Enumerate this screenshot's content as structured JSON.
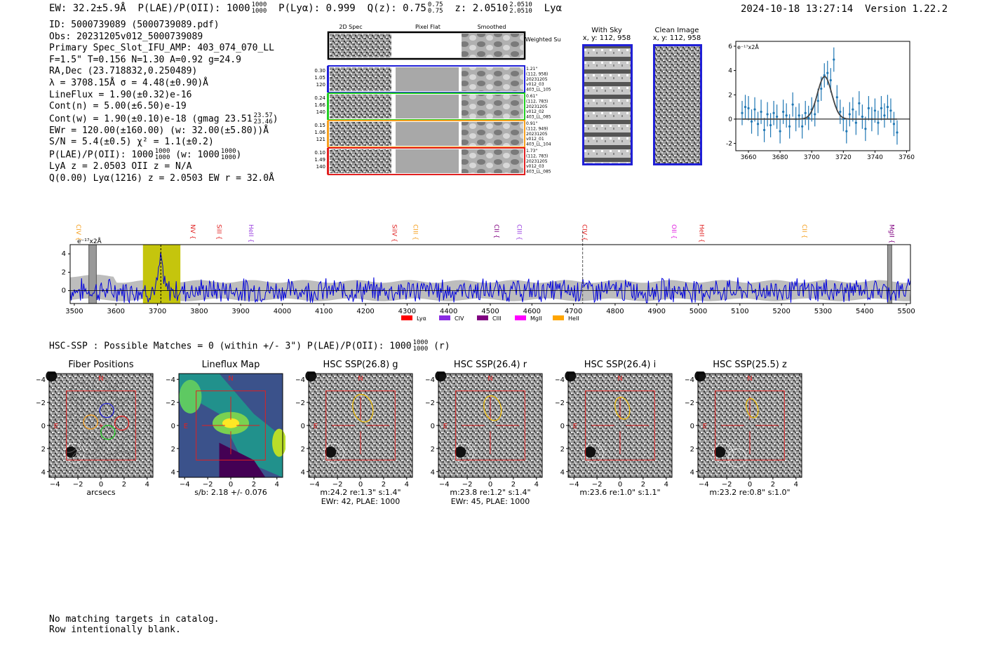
{
  "header": {
    "ew": "EW: 32.2±5.9Å",
    "plae_label": "P(LAE)/P(OII): 1000",
    "plae_hi": "1000",
    "plae_lo": "1000",
    "plya": "P(Lyα): 0.999",
    "qz_label": "Q(z): 0.75",
    "qz_hi": "0.75",
    "qz_lo": "0.75",
    "z_label": "z: 2.0510",
    "z_hi": "2.0510",
    "z_lo": "2.0510",
    "line": "Lyα",
    "timestamp": "2024-10-18 13:27:14",
    "version": "Version 1.22.2"
  },
  "info": {
    "id": "ID: 5000739089 (5000739089.pdf)",
    "obs": "Obs: 20231205v012_5000739089",
    "primary": "Primary Spec_Slot_IFU_AMP: 403_074_070_LL",
    "params": "F=1.5\"  T=0.156  N=1.30  A=0.92  g=24.9",
    "radec": "RA,Dec (23.718832,0.250489)",
    "lambda": "λ = 3708.15Å  σ = 4.48(±0.90)Å",
    "lineflux": "LineFlux = 1.90(±0.32)e-16",
    "contn": "Cont(n) = 5.00(±6.50)e-19",
    "contw": "Cont(w) = 1.90(±0.10)e-18 (gmag 23.51",
    "gmag_hi": "23.57",
    "gmag_lo": "23.46",
    "ewr": "EWr = 120.00(±160.00) (w: 32.00(±5.80))Å",
    "sn": "S/N = 5.4(±0.5)  χ² = 1.1(±0.2)",
    "plae": "P(LAE)/P(OII): 1000",
    "plae_w": "(w: 1000",
    "lya_z": "LyA z = 2.0503  OII z = N/A",
    "q": "Q(0.00) Lyα(1216) z = 2.0503  EW r = 32.0Å"
  },
  "cutouts": {
    "col_titles": [
      "2D Spec",
      "Pixel Flat",
      "Smoothed"
    ],
    "weighted_sum": "Weighted Sum",
    "rows": [
      {
        "n1": "0.30",
        "n2": "1.05",
        "n3": "120",
        "dist": "1.21\"",
        "xy": "(112, 958)",
        "d1": "20231205",
        "d2": "v012_03",
        "d3": "403_LL_105",
        "color": "#1f1fd6"
      },
      {
        "n1": "0.24",
        "n2": "1.66",
        "n3": "140",
        "dist": "0.61\"",
        "xy": "(112, 783)",
        "d1": "20231205",
        "d2": "v012_02",
        "d3": "403_LL_085",
        "color": "#22cc22"
      },
      {
        "n1": "0.15",
        "n2": "1.06",
        "n3": "121",
        "dist": "0.91\"",
        "xy": "(112, 949)",
        "d1": "20231205",
        "d2": "v012_01",
        "d3": "403_LL_104",
        "color": "#f5a020"
      },
      {
        "n1": "0.10",
        "n2": "1.49",
        "n3": "140",
        "dist": "1.73\"",
        "xy": "(112, 783)",
        "d1": "20231205",
        "d2": "v012_03",
        "d3": "403_LL_085",
        "color": "#e02020"
      }
    ],
    "with_sky": "With Sky",
    "with_sky_xy": "x, y: 112, 958",
    "clean": "Clean Image",
    "clean_xy": "x, y: 112, 958"
  },
  "fit_chart": {
    "type": "scatter",
    "unit": "e⁻¹⁷x2Å",
    "xlim": [
      3652,
      3762
    ],
    "ylim": [
      -2.6,
      6.4
    ],
    "xticks": [
      3660,
      3680,
      3700,
      3720,
      3740,
      3760
    ],
    "yticks": [
      -2,
      0,
      2,
      4,
      6
    ],
    "x": [
      3656,
      3658,
      3660,
      3662,
      3664,
      3666,
      3668,
      3670,
      3672,
      3674,
      3676,
      3678,
      3680,
      3682,
      3684,
      3686,
      3688,
      3690,
      3692,
      3694,
      3696,
      3698,
      3700,
      3702,
      3704,
      3706,
      3708,
      3710,
      3712,
      3714,
      3716,
      3718,
      3720,
      3722,
      3724,
      3726,
      3728,
      3730,
      3732,
      3734,
      3736,
      3738,
      3740,
      3742,
      3744,
      3746,
      3748,
      3750,
      3752,
      3754
    ],
    "y": [
      0.5,
      1.0,
      0.9,
      -0.2,
      0.8,
      -0.4,
      0.6,
      -0.9,
      0.4,
      -0.5,
      0.5,
      0.2,
      -1.0,
      0.6,
      0.3,
      -0.6,
      1.2,
      0.0,
      0.3,
      -0.6,
      0.5,
      0.1,
      0.8,
      0.4,
      1.5,
      2.5,
      3.6,
      3.8,
      3.2,
      4.9,
      1.8,
      0.6,
      0.0,
      -1.0,
      0.4,
      0.8,
      -0.3,
      1.3,
      0.2,
      -0.8,
      0.9,
      0.0,
      0.7,
      -0.3,
      0.9,
      0.3,
      1.0,
      0.7,
      -0.4,
      -1.1
    ],
    "err": 1.0,
    "model": {
      "amp": 3.5,
      "center": 3708.15,
      "sigma": 4.48
    }
  },
  "spectrum": {
    "type": "line",
    "unit": "e⁻¹⁷x2Å",
    "xlim": [
      3490,
      5510
    ],
    "ylim": [
      -1.4,
      5.0
    ],
    "xticks": [
      3500,
      3600,
      3700,
      3800,
      3900,
      4000,
      4100,
      4200,
      4300,
      4400,
      4500,
      4600,
      4700,
      4800,
      4900,
      5000,
      5100,
      5200,
      5300,
      5400,
      5500
    ],
    "yticks": [
      0,
      2,
      4
    ],
    "highlight": [
      3665,
      3755
    ],
    "line_center": 3708,
    "dashed_extra": 4722,
    "masked": [
      [
        3535,
        3553
      ],
      [
        5455,
        5465
      ]
    ],
    "lines": [
      {
        "name": "CIV",
        "wave": 3505,
        "color": "#f5a020"
      },
      {
        "name": "NV",
        "wave": 3780,
        "color": "#e02020"
      },
      {
        "name": "SiII",
        "wave": 3843,
        "color": "#e02020"
      },
      {
        "name": "HeII",
        "wave": 3920,
        "color": "#9a40e0"
      },
      {
        "name": "SiIV",
        "wave": 4265,
        "color": "#e02020"
      },
      {
        "name": "CIII",
        "wave": 4315,
        "color": "#f5a020"
      },
      {
        "name": "CII",
        "wave": 4510,
        "color": "#800080"
      },
      {
        "name": "CIII",
        "wave": 4565,
        "color": "#9a40e0"
      },
      {
        "name": "CIV",
        "wave": 4722,
        "color": "#e02020"
      },
      {
        "name": "OII",
        "wave": 4937,
        "color": "#e020e0"
      },
      {
        "name": "HeII",
        "wave": 5003,
        "color": "#e02020"
      },
      {
        "name": "CII",
        "wave": 5250,
        "color": "#f5a020"
      },
      {
        "name": "MgII",
        "wave": 5460,
        "color": "#800080"
      }
    ],
    "legend": [
      {
        "name": "Lyα",
        "color": "#ff0000"
      },
      {
        "name": "CIV",
        "color": "#8a2be2"
      },
      {
        "name": "CIII",
        "color": "#800080"
      },
      {
        "name": "MgII",
        "color": "#ff00ff"
      },
      {
        "name": "HeII",
        "color": "#ffa500"
      }
    ]
  },
  "hsc": {
    "heading": "HSC-SSP : Possible Matches = 0 (within +/- 3\")  P(LAE)/P(OII): 1000",
    "heading_hi": "1000",
    "heading_lo": "1000",
    "heading_band": "(r)",
    "ticks": [
      "−4",
      "−2",
      "0",
      "2",
      "4"
    ],
    "panels": [
      {
        "title": "Fiber Positions",
        "cap1": "arcsecs",
        "cap2": "",
        "kind": "fiber"
      },
      {
        "title": "Lineflux Map",
        "cap1": "s/b: 2.18 +/- 0.076",
        "cap2": "",
        "kind": "flux"
      },
      {
        "title": "HSC SSP(26.8) g",
        "cap1": "m:24.2  re:1.3\"  s:1.4\"",
        "cap2": "EWr: 42, PLAE: 1000",
        "kind": "img"
      },
      {
        "title": "HSC SSP(26.4) r",
        "cap1": "m:23.8  re:1.2\"  s:1.4\"",
        "cap2": "EWr: 45, PLAE: 1000",
        "kind": "img"
      },
      {
        "title": "HSC SSP(26.4) i",
        "cap1": "m:23.6  re:1.0\"  s:1.1\"",
        "cap2": "",
        "kind": "img"
      },
      {
        "title": "HSC SSP(25.5) z",
        "cap1": "m:23.2  re:0.8\"  s:1.0\"",
        "cap2": "",
        "kind": "img"
      }
    ],
    "north": "N",
    "east": "E"
  },
  "footer": {
    "line1": "No matching targets in catalog.",
    "line2": "Row intentionally blank."
  },
  "colors": {
    "errbar": "#1f77b4",
    "model": "#444444",
    "spectrum": "#0000dd",
    "noise": "#bdbdbd",
    "highlight": "#c2c200",
    "box": "#e02020"
  }
}
